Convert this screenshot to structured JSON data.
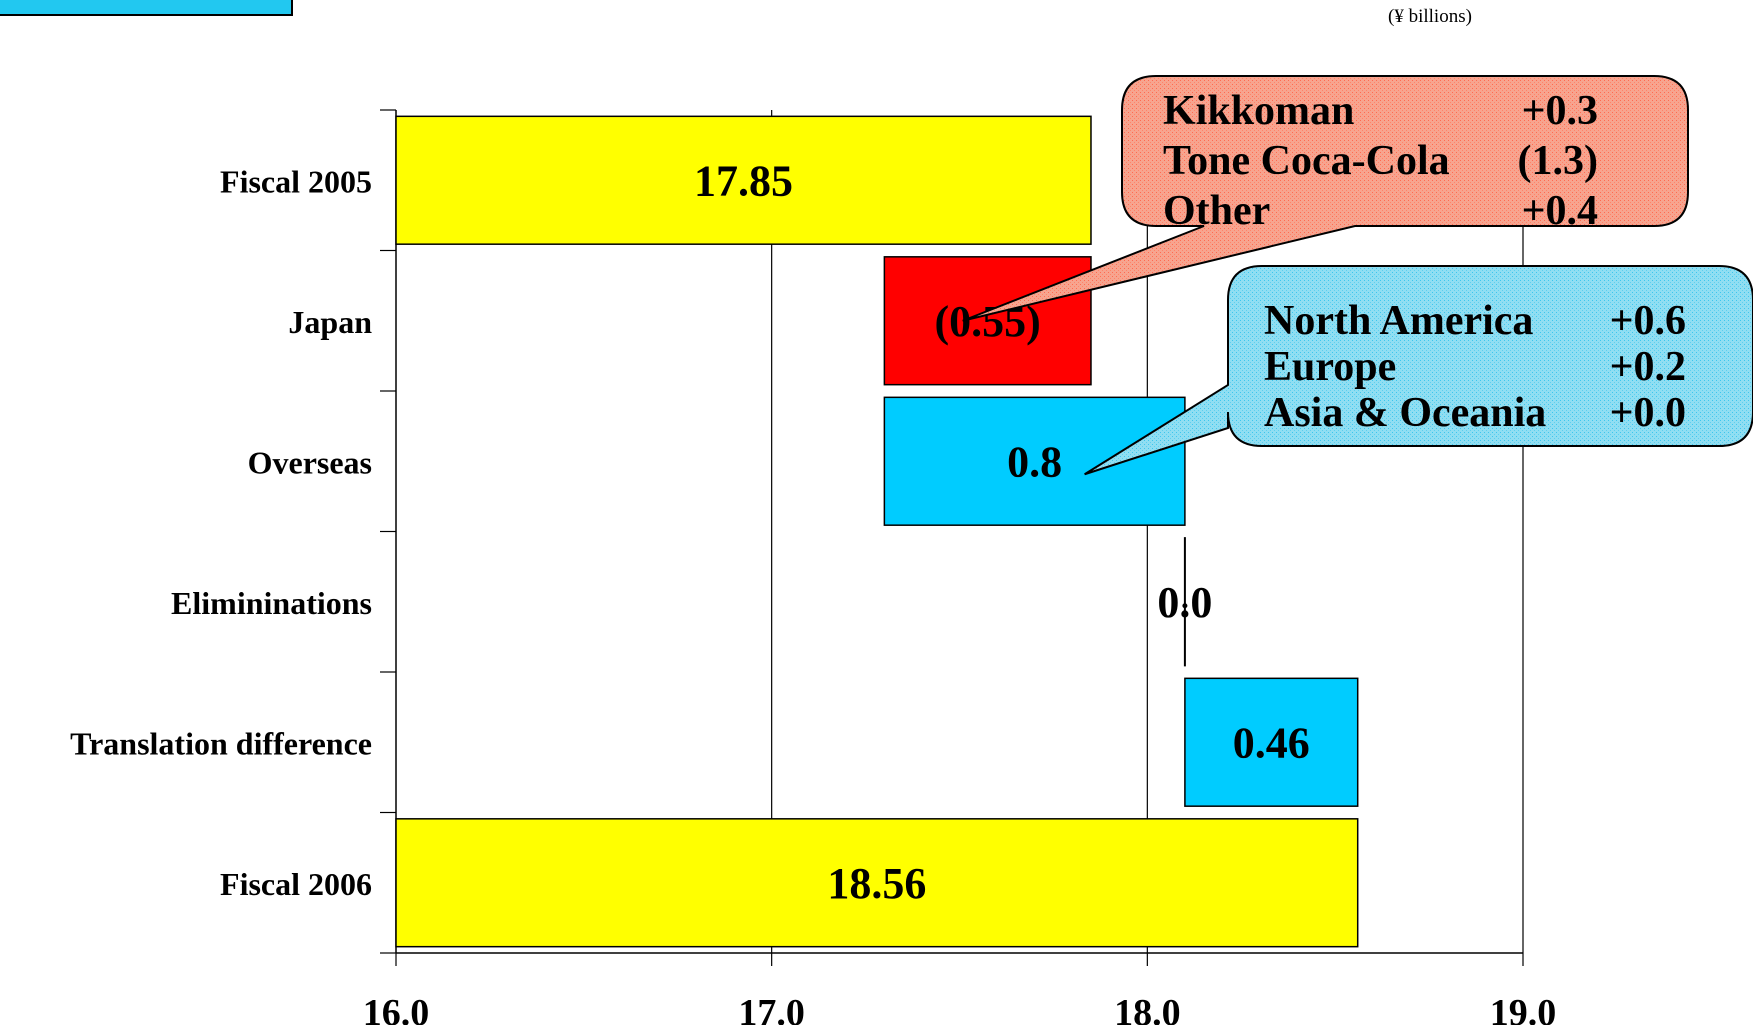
{
  "unit_label": "(¥ billions)",
  "colors": {
    "total": "#ffff00",
    "decrease": "#ff0000",
    "increase": "#00ccff",
    "gridline": "#000000",
    "callout_japan": "#f4a08c",
    "callout_overseas": "#8edcf0",
    "corner_box": "#22c8f0"
  },
  "chart_data": {
    "type": "bar",
    "subtype": "waterfall",
    "orientation": "horizontal",
    "categories": [
      "Fiscal 2005",
      "Japan",
      "Overseas",
      "Elimininations",
      "Translation difference",
      "Fiscal 2006"
    ],
    "bars": [
      {
        "category": "Fiscal 2005",
        "kind": "total",
        "start": 16.0,
        "end": 17.85,
        "label": "17.85"
      },
      {
        "category": "Japan",
        "kind": "decrease",
        "start": 17.3,
        "end": 17.85,
        "label": "(0.55)"
      },
      {
        "category": "Overseas",
        "kind": "increase",
        "start": 17.3,
        "end": 18.1,
        "label": "0.8"
      },
      {
        "category": "Elimininations",
        "kind": "zero",
        "start": 18.1,
        "end": 18.1,
        "label": "0.0"
      },
      {
        "category": "Translation difference",
        "kind": "increase",
        "start": 18.1,
        "end": 18.56,
        "label": "0.46"
      },
      {
        "category": "Fiscal 2006",
        "kind": "total",
        "start": 16.0,
        "end": 18.56,
        "label": "18.56"
      }
    ],
    "xlim": [
      16.0,
      19.0
    ],
    "x_ticks": [
      "16.0",
      "17.0",
      "18.0",
      "19.0"
    ],
    "x_tick_values": [
      16.0,
      17.0,
      18.0,
      19.0
    ],
    "grid": "vertical",
    "callouts": [
      {
        "target": "Japan",
        "lines": [
          {
            "name": "Kikkoman",
            "value": "+0.3"
          },
          {
            "name": "Tone Coca-Cola",
            "value": "(1.3)"
          },
          {
            "name": "Other",
            "value": "+0.4"
          }
        ]
      },
      {
        "target": "Overseas",
        "lines": [
          {
            "name": "North America",
            "value": "+0.6"
          },
          {
            "name": "Europe",
            "value": "+0.2"
          },
          {
            "name": "Asia & Oceania",
            "value": "+0.0"
          }
        ]
      }
    ]
  }
}
